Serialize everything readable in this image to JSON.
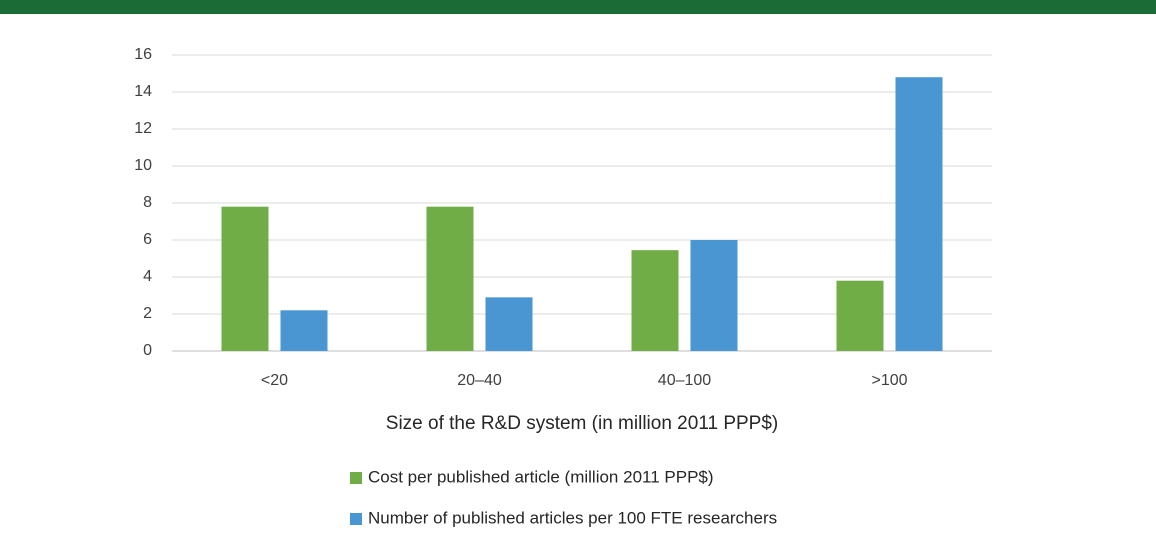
{
  "chart_data": {
    "type": "bar",
    "x_label": "Size of the R&D system (in million 2011 PPP$)",
    "categories": [
      "<20",
      "20–40",
      "40–100",
      ">100"
    ],
    "series": [
      {
        "name": "Cost per published article (million 2011 PPP$)",
        "color": "#70ad47",
        "values": [
          7.8,
          7.8,
          5.45,
          3.8
        ]
      },
      {
        "name": "Number of published articles per 100 FTE researchers",
        "color": "#4a96d2",
        "values": [
          2.2,
          2.9,
          6.0,
          14.8
        ]
      }
    ],
    "ylim": [
      0,
      16
    ],
    "yticks": [
      0,
      2,
      4,
      6,
      8,
      10,
      12,
      14,
      16
    ],
    "grid": true
  }
}
